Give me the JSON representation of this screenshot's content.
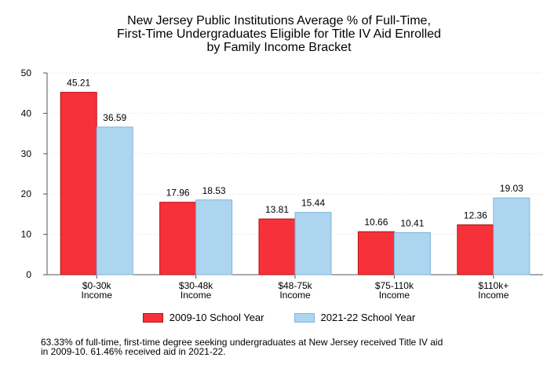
{
  "title_lines": [
    "New Jersey Public Institutions Average % of Full-Time,",
    "First-Time Undergraduates Eligible for Title IV Aid Enrolled",
    "by Family Income Bracket"
  ],
  "note_lines": [
    "63.33% of full-time, first-time degree seeking undergraduates at New Jersey received Title IV aid",
    "in 2009-10. 61.46% received aid in 2021-22."
  ],
  "colors": {
    "series_2009": "#f7313a",
    "series_2021": "#aed5f0",
    "grid": "#d9d9d9",
    "axis": "#555555"
  },
  "chart_data": {
    "type": "bar",
    "title": "New Jersey Public Institutions Average % of Full-Time, First-Time Undergraduates Eligible for Title IV Aid Enrolled by Family Income Bracket",
    "categories": [
      [
        "$0-30k",
        "Income"
      ],
      [
        "$30-48k",
        "Income"
      ],
      [
        "$48-75k",
        "Income"
      ],
      [
        "$75-110k",
        "Income"
      ],
      [
        "$110k+",
        "Income"
      ]
    ],
    "series": [
      {
        "name": "2009-10 School Year",
        "values": [
          45.21,
          17.96,
          13.81,
          10.66,
          12.36
        ],
        "labels": [
          "45.21",
          "17.96",
          "13.81",
          "10.66",
          "12.36"
        ]
      },
      {
        "name": "2021-22 School Year",
        "values": [
          36.59,
          18.53,
          15.44,
          10.41,
          19.03
        ],
        "labels": [
          "36.59",
          "18.53",
          "15.44",
          "10.41",
          "19.03"
        ]
      }
    ],
    "ylim": [
      0,
      50
    ],
    "yticks": [
      0,
      10,
      20,
      30,
      40,
      50
    ],
    "grid": "horizontal dotted",
    "legend_position": "bottom"
  }
}
